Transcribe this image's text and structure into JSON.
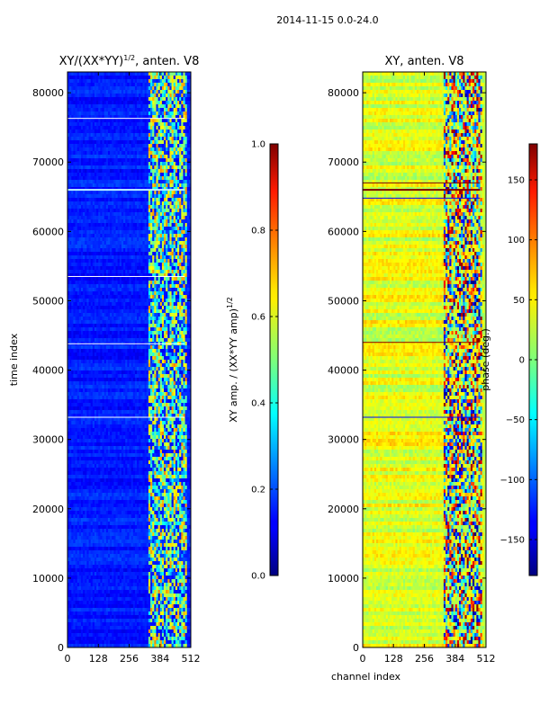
{
  "figure": {
    "suptitle": "2014-11-15 0.0-24.0"
  },
  "chart_data": [
    {
      "type": "heatmap",
      "title_main": "XY/(XX*YY)",
      "title_exp": "1/2",
      "title_tail": ", anten. V8",
      "ylabel": "time index",
      "xlabel": "",
      "xlim": [
        0,
        512
      ],
      "ylim": [
        0,
        83000
      ],
      "x_ticks": [
        0,
        128,
        256,
        384,
        512
      ],
      "y_ticks": [
        0,
        10000,
        20000,
        30000,
        40000,
        50000,
        60000,
        70000,
        80000
      ],
      "colorbar": {
        "label_main": "XY amp. / (XX*YY amp)",
        "label_exp": "1/2",
        "range": [
          0.0,
          1.0
        ],
        "ticks": [
          "0.0",
          "0.2",
          "0.4",
          "0.6",
          "0.8",
          "1.0"
        ],
        "colormap": "jet"
      }
    },
    {
      "type": "heatmap",
      "title_main": "XY, anten. V8",
      "title_exp": "",
      "title_tail": "",
      "ylabel": "",
      "xlabel": "channel index",
      "xlim": [
        0,
        512
      ],
      "ylim": [
        0,
        83000
      ],
      "x_ticks": [
        0,
        128,
        256,
        384,
        512
      ],
      "y_ticks": [
        0,
        10000,
        20000,
        30000,
        40000,
        50000,
        60000,
        70000,
        80000
      ],
      "colorbar": {
        "label_main": "phase (deg.)",
        "label_exp": "",
        "range": [
          -180,
          180
        ],
        "ticks": [
          "−150",
          "−100",
          "−50",
          "0",
          "50",
          "100",
          "150"
        ],
        "colormap": "jet"
      }
    }
  ]
}
